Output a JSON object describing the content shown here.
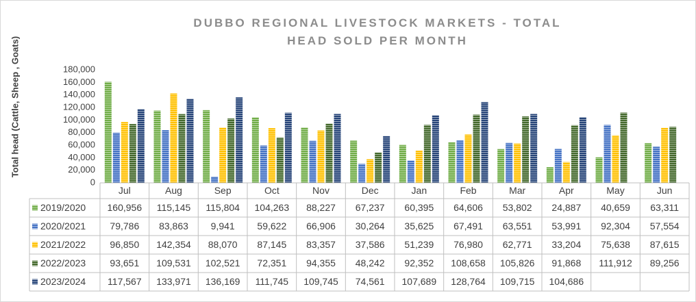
{
  "chart_data": {
    "type": "bar",
    "title": "DUBBO REGIONAL LIVESTOCK MARKETS - TOTAL HEAD SOLD PER MONTH",
    "y_label": "Total head (Cattle, Sheep , Goats)",
    "categories": [
      "Jul",
      "Aug",
      "Sep",
      "Oct",
      "Nov",
      "Dec",
      "Jan",
      "Feb",
      "Mar",
      "Apr",
      "May",
      "Jun"
    ],
    "ylim": [
      0,
      180000
    ],
    "yticks": [
      0,
      {
        "value": 20000,
        "label": "20,000"
      },
      {
        "value": 40000,
        "label": "40,000"
      },
      {
        "value": 60000,
        "label": "60,000"
      },
      {
        "value": 80000,
        "label": "80,000"
      },
      {
        "value": 100000,
        "label": "100,000"
      },
      {
        "value": 120000,
        "label": "120,000"
      },
      {
        "value": 140000,
        "label": "140,000"
      },
      {
        "value": 160000,
        "label": "160,000"
      },
      {
        "value": 180000,
        "label": "180,000"
      }
    ],
    "series": [
      {
        "name": "2019/2020",
        "color": "#70ad47",
        "values": [
          160956,
          115145,
          115804,
          104263,
          88227,
          67237,
          60395,
          64606,
          53802,
          24887,
          40659,
          63311
        ],
        "value_labels": [
          "160,956",
          "115,145",
          "115,804",
          "104,263",
          "88,227",
          "67,237",
          "60,395",
          "64,606",
          "53,802",
          "24,887",
          "40,659",
          "63,311"
        ]
      },
      {
        "name": "2020/2021",
        "color": "#4472c4",
        "values": [
          79786,
          83863,
          9941,
          59622,
          66906,
          30264,
          35625,
          67491,
          63551,
          53991,
          92304,
          57554
        ],
        "value_labels": [
          "79,786",
          "83,863",
          "9,941",
          "59,622",
          "66,906",
          "30,264",
          "35,625",
          "67,491",
          "63,551",
          "53,991",
          "92,304",
          "57,554"
        ]
      },
      {
        "name": "2021/2022",
        "color": "#ffc000",
        "values": [
          96850,
          142354,
          88070,
          87145,
          83357,
          37586,
          51239,
          76980,
          62771,
          33204,
          75638,
          87615
        ],
        "value_labels": [
          "96,850",
          "142,354",
          "88,070",
          "87,145",
          "83,357",
          "37,586",
          "51,239",
          "76,980",
          "62,771",
          "33,204",
          "75,638",
          "87,615"
        ]
      },
      {
        "name": "2022/2023",
        "color": "#43682b",
        "values": [
          93651,
          109531,
          102521,
          72351,
          94355,
          48242,
          92352,
          108658,
          105826,
          91868,
          111912,
          89256
        ],
        "value_labels": [
          "93,651",
          "109,531",
          "102,521",
          "72,351",
          "94,355",
          "48,242",
          "92,352",
          "108,658",
          "105,826",
          "91,868",
          "111,912",
          "89,256"
        ]
      },
      {
        "name": "2023/2024",
        "color": "#264478",
        "values": [
          117567,
          133971,
          136169,
          111745,
          109745,
          74561,
          107689,
          128764,
          109715,
          104686,
          null,
          null
        ],
        "value_labels": [
          "117,567",
          "133,971",
          "136,169",
          "111,745",
          "109,745",
          "74,561",
          "107,689",
          "128,764",
          "109,715",
          "104,686",
          null,
          null
        ]
      }
    ]
  }
}
